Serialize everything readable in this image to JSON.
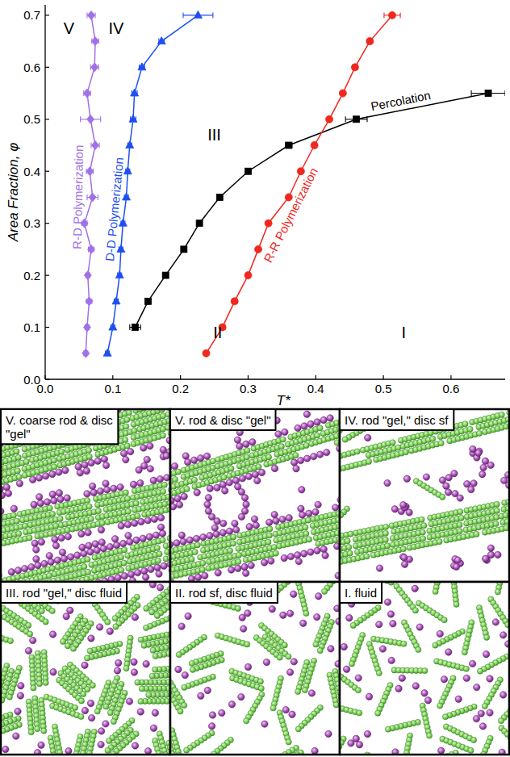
{
  "chart_data": {
    "type": "line",
    "xlabel": "T*",
    "ylabel": "Area Fraction, φ",
    "xlim": [
      0,
      0.68
    ],
    "ylim": [
      0,
      0.72
    ],
    "xticks": [
      {
        "value": 0,
        "label": "0.0"
      },
      0.1,
      0.2,
      0.3,
      0.4,
      0.5,
      0.6
    ],
    "yticks": [
      {
        "value": 0,
        "label": "0.0"
      },
      0.1,
      0.2,
      0.3,
      0.4,
      0.5,
      0.6,
      0.7
    ],
    "grid": false,
    "series": [
      {
        "name": "R-D Polymerization",
        "color": "#a070e6",
        "marker": "diamond",
        "line_style": "solid",
        "x": [
          0.06,
          0.062,
          0.065,
          0.063,
          0.068,
          0.058,
          0.07,
          0.066,
          0.074,
          0.067,
          0.062,
          0.073,
          0.074,
          0.068
        ],
        "values": [
          0.05,
          0.1,
          0.15,
          0.2,
          0.25,
          0.3,
          0.35,
          0.4,
          0.45,
          0.5,
          0.55,
          0.6,
          0.65,
          0.7
        ],
        "xerr": [
          0.003,
          0.003,
          0.004,
          0.003,
          0.004,
          0.004,
          0.008,
          0.005,
          0.006,
          0.015,
          0.005,
          0.006,
          0.005,
          0.006
        ]
      },
      {
        "name": "D-D Polymerization",
        "color": "#1f4ff0",
        "marker": "triangle",
        "line_style": "solid",
        "x": [
          0.092,
          0.1,
          0.105,
          0.11,
          0.112,
          0.115,
          0.12,
          0.122,
          0.125,
          0.13,
          0.132,
          0.143,
          0.172,
          0.226
        ],
        "values": [
          0.05,
          0.1,
          0.15,
          0.2,
          0.25,
          0.3,
          0.35,
          0.4,
          0.45,
          0.5,
          0.55,
          0.6,
          0.65,
          0.7
        ],
        "xerr": [
          0.003,
          0.003,
          0.003,
          0.003,
          0.003,
          0.003,
          0.003,
          0.003,
          0.003,
          0.004,
          0.004,
          0.004,
          0.004,
          0.022
        ]
      },
      {
        "name": "Percolation",
        "color": "#000000",
        "marker": "square",
        "line_style": "solid",
        "x": [
          0.133,
          0.152,
          0.178,
          0.205,
          0.228,
          0.258,
          0.3,
          0.36,
          0.46,
          0.655
        ],
        "values": [
          0.1,
          0.15,
          0.2,
          0.25,
          0.3,
          0.35,
          0.4,
          0.45,
          0.5,
          0.55
        ],
        "xerr": [
          0.008,
          0.004,
          0.004,
          0.003,
          0.003,
          0.003,
          0.003,
          0.005,
          0.016,
          0.025
        ]
      },
      {
        "name": "R-R Polymerization",
        "color": "#f0281e",
        "marker": "circle",
        "line_style": "solid",
        "x": [
          0.238,
          0.262,
          0.28,
          0.3,
          0.315,
          0.33,
          0.36,
          0.378,
          0.398,
          0.42,
          0.44,
          0.458,
          0.48,
          0.513
        ],
        "values": [
          0.05,
          0.1,
          0.15,
          0.2,
          0.25,
          0.3,
          0.35,
          0.4,
          0.45,
          0.5,
          0.55,
          0.6,
          0.65,
          0.7
        ],
        "xerr": [
          0.003,
          0.004,
          0.004,
          0.003,
          0.003,
          0.003,
          0.003,
          0.003,
          0.003,
          0.003,
          0.003,
          0.004,
          0.004,
          0.012
        ]
      }
    ],
    "annotations": [
      {
        "text": "V",
        "x": 0.035,
        "y": 0.675
      },
      {
        "text": "IV",
        "x": 0.105,
        "y": 0.675
      },
      {
        "text": "III",
        "x": 0.25,
        "y": 0.47
      },
      {
        "text": "II",
        "x": 0.255,
        "y": 0.09
      },
      {
        "text": "I",
        "x": 0.53,
        "y": 0.09
      }
    ]
  },
  "snapshots": [
    {
      "label": "V. coarse rod & disc \"gel\""
    },
    {
      "label": "V. rod & disc \"gel\""
    },
    {
      "label": "IV. rod \"gel,\" disc sf"
    },
    {
      "label": "III. rod \"gel,\" disc fluid"
    },
    {
      "label": "II. rod sf, disc fluid"
    },
    {
      "label": "I. fluid"
    }
  ]
}
